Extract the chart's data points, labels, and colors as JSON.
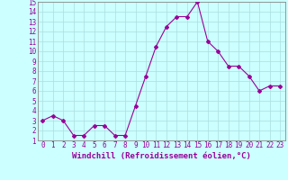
{
  "x": [
    0,
    1,
    2,
    3,
    4,
    5,
    6,
    7,
    8,
    9,
    10,
    11,
    12,
    13,
    14,
    15,
    16,
    17,
    18,
    19,
    20,
    21,
    22,
    23
  ],
  "y": [
    3,
    3.5,
    3,
    1.5,
    1.5,
    2.5,
    2.5,
    1.5,
    1.5,
    4.5,
    7.5,
    10.5,
    12.5,
    13.5,
    13.5,
    15,
    11,
    10,
    8.5,
    8.5,
    7.5,
    6,
    6.5,
    6.5
  ],
  "line_color": "#990099",
  "marker": "D",
  "marker_size": 2,
  "bg_color": "#ccffff",
  "grid_color": "#aadddd",
  "xlabel": "Windchill (Refroidissement éolien,°C)",
  "xlim": [
    -0.5,
    23.5
  ],
  "ylim": [
    1,
    15
  ],
  "yticks": [
    1,
    2,
    3,
    4,
    5,
    6,
    7,
    8,
    9,
    10,
    11,
    12,
    13,
    14,
    15
  ],
  "xticks": [
    0,
    1,
    2,
    3,
    4,
    5,
    6,
    7,
    8,
    9,
    10,
    11,
    12,
    13,
    14,
    15,
    16,
    17,
    18,
    19,
    20,
    21,
    22,
    23
  ],
  "tick_label_color": "#990099",
  "tick_label_size": 5.5,
  "xlabel_size": 6.5,
  "spine_color": "#888888"
}
